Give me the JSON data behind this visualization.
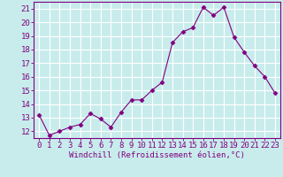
{
  "x": [
    0,
    1,
    2,
    3,
    4,
    5,
    6,
    7,
    8,
    9,
    10,
    11,
    12,
    13,
    14,
    15,
    16,
    17,
    18,
    19,
    20,
    21,
    22,
    23
  ],
  "y": [
    13.2,
    11.7,
    12.0,
    12.3,
    12.5,
    13.3,
    12.9,
    12.3,
    13.4,
    14.3,
    14.3,
    15.0,
    15.6,
    18.5,
    19.3,
    19.6,
    21.1,
    20.5,
    21.1,
    18.9,
    17.8,
    16.8,
    16.0,
    14.8
  ],
  "line_color": "#800080",
  "marker": "D",
  "marker_size": 2.5,
  "bg_color": "#c8ecec",
  "grid_color": "#ffffff",
  "xlabel": "Windchill (Refroidissement éolien,°C)",
  "ylabel_ticks": [
    12,
    13,
    14,
    15,
    16,
    17,
    18,
    19,
    20,
    21
  ],
  "xtick_labels": [
    "0",
    "1",
    "2",
    "3",
    "4",
    "5",
    "6",
    "7",
    "8",
    "9",
    "10",
    "11",
    "12",
    "13",
    "14",
    "15",
    "16",
    "17",
    "18",
    "19",
    "20",
    "21",
    "22",
    "23"
  ],
  "xlim": [
    -0.5,
    23.5
  ],
  "ylim": [
    11.5,
    21.5
  ],
  "xlabel_fontsize": 6.5,
  "tick_fontsize": 6.5
}
